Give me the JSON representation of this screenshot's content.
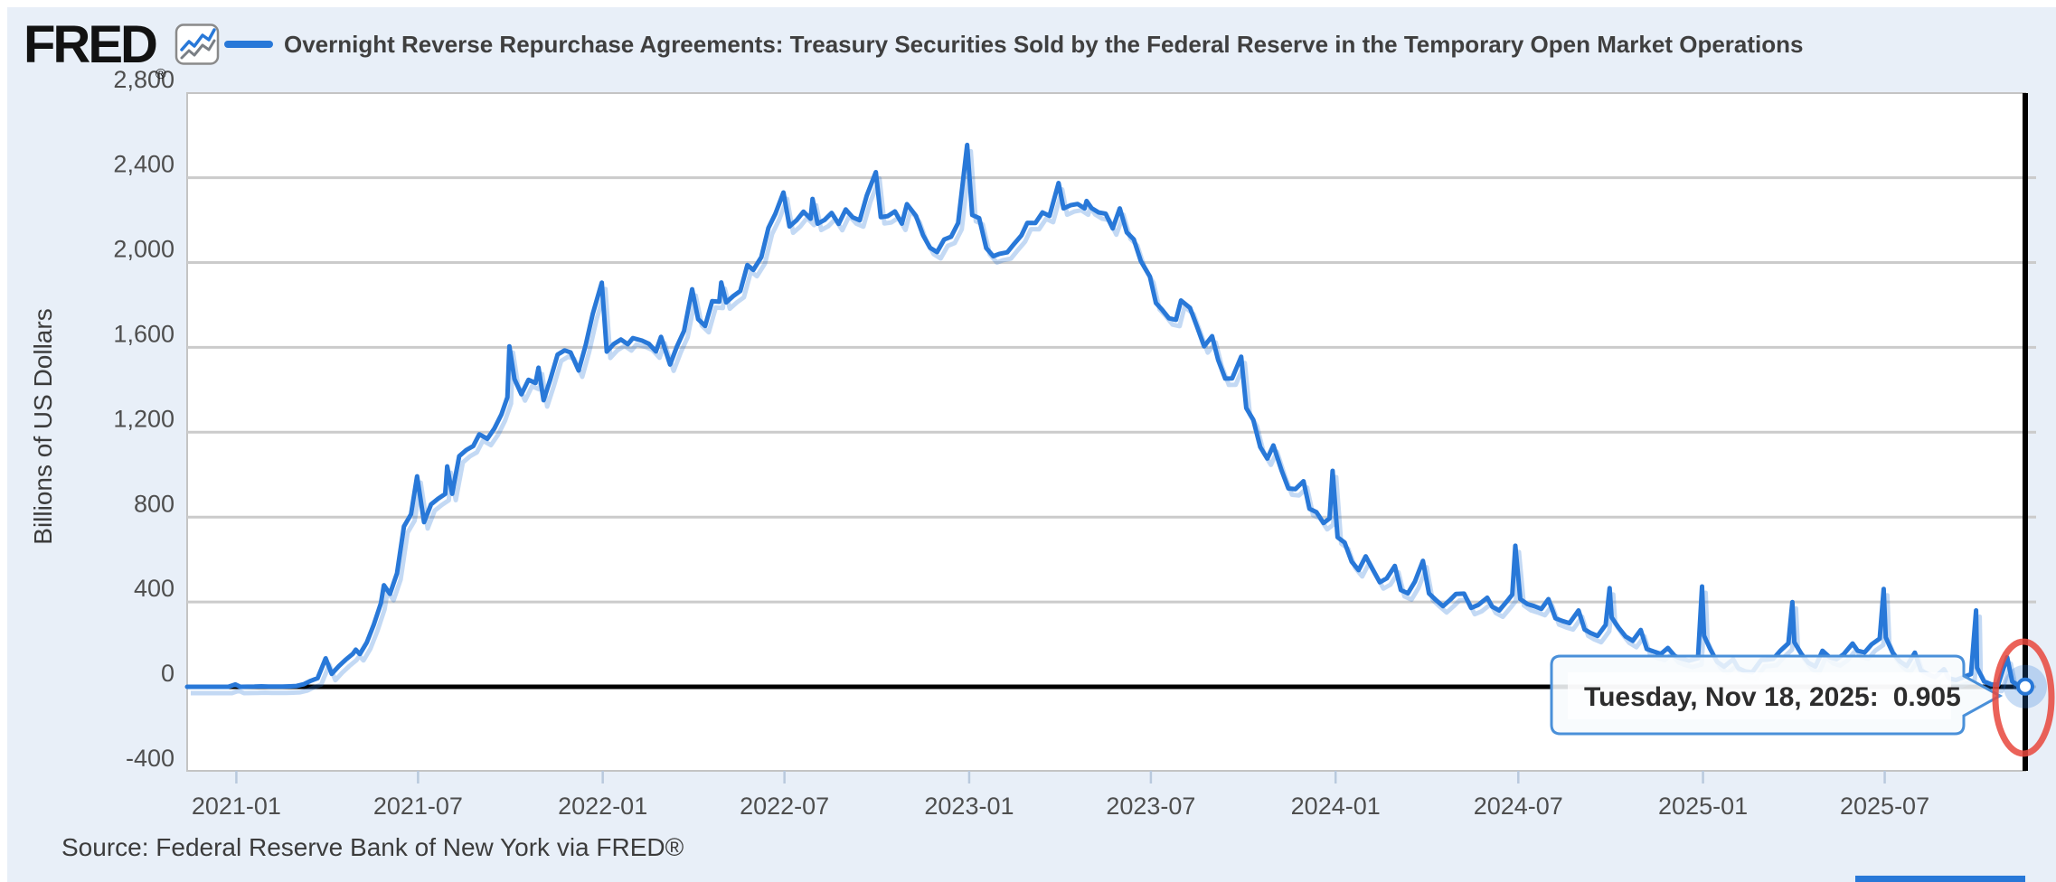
{
  "header": {
    "logo": "FRED",
    "registered_mark": "®",
    "title": "Overnight Reverse Repurchase Agreements: Treasury Securities Sold by the Federal Reserve in the Temporary Open Market Operations"
  },
  "tooltip": {
    "label": "Tuesday, Nov 18, 2025:",
    "value": "0.905"
  },
  "source": "Source: Federal Reserve Bank of New York via FRED®",
  "y_axis": {
    "title": "Billions of US Dollars",
    "ticks": [
      {
        "label": "2,800",
        "value": 2800
      },
      {
        "label": "2,400",
        "value": 2400
      },
      {
        "label": "2,000",
        "value": 2000
      },
      {
        "label": "1,600",
        "value": 1600
      },
      {
        "label": "1,200",
        "value": 1200
      },
      {
        "label": "800",
        "value": 800
      },
      {
        "label": "400",
        "value": 400
      },
      {
        "label": "0",
        "value": 0
      },
      {
        "label": "-400",
        "value": -400
      }
    ]
  },
  "x_axis": {
    "ticks": [
      {
        "label": "2021-01",
        "date": "2021-01-01"
      },
      {
        "label": "2021-07",
        "date": "2021-07-01"
      },
      {
        "label": "2022-01",
        "date": "2022-01-01"
      },
      {
        "label": "2022-07",
        "date": "2022-07-01"
      },
      {
        "label": "2023-01",
        "date": "2023-01-01"
      },
      {
        "label": "2023-07",
        "date": "2023-07-01"
      },
      {
        "label": "2024-01",
        "date": "2024-01-01"
      },
      {
        "label": "2024-07",
        "date": "2024-07-01"
      },
      {
        "label": "2025-01",
        "date": "2025-01-01"
      },
      {
        "label": "2025-07",
        "date": "2025-07-01"
      }
    ]
  },
  "colors": {
    "line": "#2878d8",
    "line_shadow": "rgba(40,120,216,0.28)",
    "grid": "#cbcbcb",
    "plot_border": "#c4c4c4",
    "zero_line": "#000000",
    "crosshair": "#000000",
    "panel_bg": "#e8eff8",
    "plot_bg": "#ffffff",
    "tooltip_border": "#4a90d9",
    "tooltip_fill": "rgba(247,250,253,0.88)",
    "halo": "rgba(40,120,216,0.25)",
    "annotation_red": "#e8463c",
    "x_tick": "#b9c9dd"
  },
  "chart_data": {
    "type": "line",
    "title": "Overnight Reverse Repurchase Agreements: Treasury Securities Sold by the Federal Reserve in the Temporary Open Market Operations",
    "ylabel": "Billions of US Dollars",
    "ylim": [
      -400,
      2800
    ],
    "x_range": [
      "2020-11-13",
      "2025-11-18"
    ],
    "grid": true,
    "legend_position": "top",
    "last_point": {
      "date": "2025-11-18",
      "label": "Tuesday, Nov 18, 2025:",
      "value": 0.905
    },
    "annotation": "red-ellipse-around-last-point",
    "dates": [
      "2020-11-13",
      "2020-11-20",
      "2020-11-27",
      "2020-12-04",
      "2020-12-11",
      "2020-12-18",
      "2020-12-24",
      "2020-12-31",
      "2021-01-05",
      "2021-01-12",
      "2021-01-19",
      "2021-01-26",
      "2021-02-02",
      "2021-02-09",
      "2021-02-16",
      "2021-02-23",
      "2021-03-02",
      "2021-03-09",
      "2021-03-16",
      "2021-03-23",
      "2021-03-31",
      "2021-04-06",
      "2021-04-13",
      "2021-04-20",
      "2021-04-27",
      "2021-04-30",
      "2021-05-04",
      "2021-05-11",
      "2021-05-18",
      "2021-05-25",
      "2021-05-28",
      "2021-06-03",
      "2021-06-10",
      "2021-06-17",
      "2021-06-24",
      "2021-06-30",
      "2021-07-07",
      "2021-07-14",
      "2021-07-21",
      "2021-07-28",
      "2021-07-30",
      "2021-08-04",
      "2021-08-11",
      "2021-08-18",
      "2021-08-25",
      "2021-08-31",
      "2021-09-08",
      "2021-09-15",
      "2021-09-22",
      "2021-09-28",
      "2021-09-30",
      "2021-10-05",
      "2021-10-12",
      "2021-10-19",
      "2021-10-26",
      "2021-10-29",
      "2021-11-03",
      "2021-11-10",
      "2021-11-17",
      "2021-11-24",
      "2021-11-30",
      "2021-12-08",
      "2021-12-15",
      "2021-12-22",
      "2021-12-31",
      "2022-01-05",
      "2022-01-12",
      "2022-01-19",
      "2022-01-26",
      "2022-01-31",
      "2022-02-09",
      "2022-02-16",
      "2022-02-23",
      "2022-02-28",
      "2022-03-09",
      "2022-03-16",
      "2022-03-23",
      "2022-03-31",
      "2022-04-06",
      "2022-04-13",
      "2022-04-20",
      "2022-04-27",
      "2022-04-29",
      "2022-05-04",
      "2022-05-11",
      "2022-05-18",
      "2022-05-25",
      "2022-05-31",
      "2022-06-08",
      "2022-06-15",
      "2022-06-22",
      "2022-06-30",
      "2022-07-06",
      "2022-07-13",
      "2022-07-20",
      "2022-07-27",
      "2022-07-29",
      "2022-08-03",
      "2022-08-10",
      "2022-08-17",
      "2022-08-24",
      "2022-08-31",
      "2022-09-07",
      "2022-09-14",
      "2022-09-21",
      "2022-09-30",
      "2022-10-05",
      "2022-10-12",
      "2022-10-19",
      "2022-10-26",
      "2022-10-31",
      "2022-11-09",
      "2022-11-16",
      "2022-11-23",
      "2022-11-30",
      "2022-12-07",
      "2022-12-14",
      "2022-12-21",
      "2022-12-30",
      "2023-01-04",
      "2023-01-11",
      "2023-01-18",
      "2023-01-25",
      "2023-01-31",
      "2023-02-08",
      "2023-02-15",
      "2023-02-22",
      "2023-02-28",
      "2023-03-08",
      "2023-03-15",
      "2023-03-22",
      "2023-03-31",
      "2023-04-05",
      "2023-04-12",
      "2023-04-19",
      "2023-04-26",
      "2023-04-28",
      "2023-05-03",
      "2023-05-10",
      "2023-05-17",
      "2023-05-24",
      "2023-05-31",
      "2023-06-07",
      "2023-06-14",
      "2023-06-21",
      "2023-06-30",
      "2023-07-06",
      "2023-07-12",
      "2023-07-19",
      "2023-07-26",
      "2023-07-31",
      "2023-08-09",
      "2023-08-16",
      "2023-08-23",
      "2023-08-31",
      "2023-09-06",
      "2023-09-13",
      "2023-09-20",
      "2023-09-29",
      "2023-10-04",
      "2023-10-11",
      "2023-10-18",
      "2023-10-25",
      "2023-10-31",
      "2023-11-08",
      "2023-11-15",
      "2023-11-22",
      "2023-11-30",
      "2023-12-06",
      "2023-12-13",
      "2023-12-20",
      "2023-12-26",
      "2023-12-29",
      "2024-01-03",
      "2024-01-10",
      "2024-01-17",
      "2024-01-24",
      "2024-01-31",
      "2024-02-07",
      "2024-02-14",
      "2024-02-21",
      "2024-02-29",
      "2024-03-06",
      "2024-03-13",
      "2024-03-20",
      "2024-03-28",
      "2024-04-03",
      "2024-04-10",
      "2024-04-17",
      "2024-04-24",
      "2024-04-30",
      "2024-05-08",
      "2024-05-15",
      "2024-05-22",
      "2024-05-31",
      "2024-06-05",
      "2024-06-12",
      "2024-06-20",
      "2024-06-25",
      "2024-06-28",
      "2024-07-03",
      "2024-07-10",
      "2024-07-17",
      "2024-07-24",
      "2024-07-31",
      "2024-08-07",
      "2024-08-14",
      "2024-08-21",
      "2024-08-30",
      "2024-09-05",
      "2024-09-11",
      "2024-09-18",
      "2024-09-26",
      "2024-09-30",
      "2024-10-02",
      "2024-10-09",
      "2024-10-16",
      "2024-10-23",
      "2024-10-31",
      "2024-11-06",
      "2024-11-13",
      "2024-11-20",
      "2024-11-27",
      "2024-12-04",
      "2024-12-11",
      "2024-12-18",
      "2024-12-27",
      "2024-12-31",
      "2025-01-02",
      "2025-01-08",
      "2025-01-15",
      "2025-01-22",
      "2025-01-31",
      "2025-02-05",
      "2025-02-12",
      "2025-02-19",
      "2025-02-28",
      "2025-03-05",
      "2025-03-12",
      "2025-03-19",
      "2025-03-27",
      "2025-03-31",
      "2025-04-02",
      "2025-04-09",
      "2025-04-16",
      "2025-04-23",
      "2025-04-30",
      "2025-05-07",
      "2025-05-14",
      "2025-05-21",
      "2025-05-30",
      "2025-06-04",
      "2025-06-11",
      "2025-06-18",
      "2025-06-26",
      "2025-06-30",
      "2025-07-02",
      "2025-07-09",
      "2025-07-16",
      "2025-07-23",
      "2025-07-31",
      "2025-08-06",
      "2025-08-13",
      "2025-08-20",
      "2025-08-29",
      "2025-09-03",
      "2025-09-10",
      "2025-09-17",
      "2025-09-25",
      "2025-09-30",
      "2025-10-01",
      "2025-10-08",
      "2025-10-15",
      "2025-10-22",
      "2025-10-31",
      "2025-11-05",
      "2025-11-10",
      "2025-11-14",
      "2025-11-18"
    ],
    "values": [
      0,
      0,
      0,
      0,
      0,
      0,
      0,
      11,
      0,
      0.5,
      1,
      2,
      1,
      1,
      1,
      2,
      4,
      12,
      28,
      41,
      134,
      61,
      97,
      128,
      155,
      175,
      154,
      209,
      294,
      394,
      479,
      438,
      535,
      756,
      813,
      992,
      776,
      860,
      887,
      909,
      1039,
      910,
      1087,
      1116,
      1135,
      1190,
      1169,
      1218,
      1283,
      1365,
      1605,
      1451,
      1379,
      1447,
      1432,
      1504,
      1351,
      1452,
      1566,
      1586,
      1576,
      1491,
      1611,
      1758,
      1905,
      1580,
      1616,
      1637,
      1615,
      1644,
      1632,
      1617,
      1581,
      1650,
      1519,
      1605,
      1678,
      1874,
      1733,
      1701,
      1818,
      1815,
      1906,
      1812,
      1842,
      1866,
      1988,
      1965,
      2026,
      2163,
      2230,
      2330,
      2170,
      2199,
      2240,
      2206,
      2300,
      2183,
      2201,
      2234,
      2182,
      2250,
      2213,
      2199,
      2316,
      2426,
      2214,
      2219,
      2241,
      2183,
      2275,
      2220,
      2129,
      2070,
      2049,
      2108,
      2122,
      2186,
      2554,
      2224,
      2209,
      2068,
      2030,
      2041,
      2048,
      2089,
      2128,
      2187,
      2186,
      2236,
      2220,
      2375,
      2255,
      2270,
      2276,
      2255,
      2290,
      2256,
      2236,
      2230,
      2161,
      2255,
      2142,
      2109,
      2007,
      1934,
      1809,
      1779,
      1737,
      1730,
      1821,
      1786,
      1697,
      1605,
      1653,
      1541,
      1453,
      1454,
      1556,
      1314,
      1258,
      1130,
      1076,
      1138,
      1022,
      935,
      932,
      969,
      839,
      823,
      772,
      794,
      1018,
      705,
      680,
      590,
      550,
      615,
      553,
      493,
      511,
      570,
      456,
      441,
      496,
      594,
      440,
      409,
      380,
      410,
      438,
      439,
      372,
      386,
      420,
      378,
      360,
      405,
      435,
      665,
      413,
      390,
      380,
      367,
      413,
      323,
      310,
      300,
      360,
      270,
      254,
      240,
      292,
      465,
      327,
      278,
      237,
      217,
      268,
      178,
      166,
      155,
      183,
      145,
      132,
      123,
      135,
      473,
      241,
      179,
      118,
      95,
      130,
      88,
      73,
      68,
      127,
      128,
      132,
      170,
      205,
      399,
      210,
      155,
      113,
      96,
      170,
      140,
      130,
      153,
      204,
      170,
      162,
      200,
      227,
      461,
      233,
      160,
      120,
      98,
      161,
      78,
      60,
      45,
      83,
      40,
      32,
      45,
      60,
      360,
      90,
      25,
      12,
      10,
      139,
      25,
      10,
      4,
      0.905
    ]
  }
}
